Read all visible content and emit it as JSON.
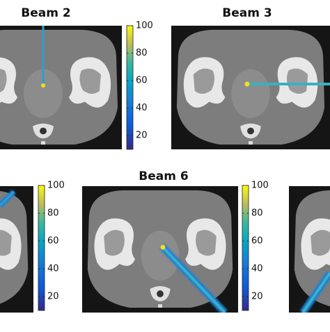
{
  "panels": [
    {
      "title": "Beam 2",
      "colorbar": {
        "lim": [
          10,
          100
        ],
        "ticks": [
          20,
          40,
          60,
          80,
          100
        ]
      }
    },
    {
      "title": "Beam 3"
    },
    {
      "colorbar": {
        "lim": [
          10,
          100
        ],
        "ticks": [
          20,
          40,
          60,
          80,
          100
        ]
      }
    },
    {
      "title": "Beam 6",
      "colorbar": {
        "lim": [
          10,
          100
        ],
        "ticks": [
          20,
          40,
          60,
          80,
          100
        ]
      }
    },
    {}
  ]
}
